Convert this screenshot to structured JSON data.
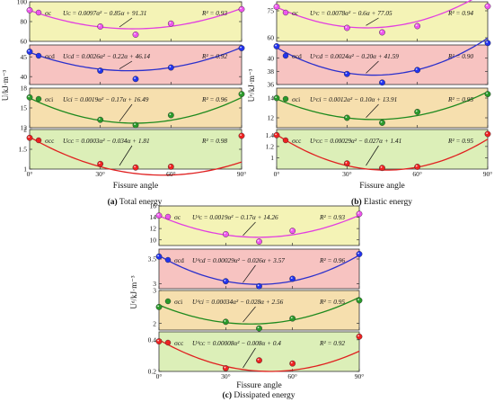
{
  "chart_data": [
    {
      "type": "scatter",
      "title": "",
      "caption_letter": "(a)",
      "caption_text": " Total energy",
      "xlabel": "Fissure angle",
      "ylabel": "U/kJ·m⁻³",
      "x_ticks": [
        "0°",
        "30°",
        "60°",
        "90°"
      ],
      "xlim": [
        0,
        90
      ],
      "panels": [
        {
          "series": "σc",
          "bg": "#f4f3b6",
          "line_color": "#e23ee0",
          "marker_color": "#ee55ee",
          "x": [
            0,
            30,
            45,
            60,
            90
          ],
          "y": [
            91.5,
            75,
            66.8,
            78,
            92.5
          ],
          "fit": {
            "a": 0.0097,
            "b": -0.85,
            "c": 91.31
          },
          "equation": "Uᴄ = 0.0097α² − 0.85α + 91.31",
          "r2": "R² = 0.93",
          "ylim": [
            60,
            100
          ],
          "yticks": [
            60,
            80,
            100
          ]
        },
        {
          "series": "σcd",
          "bg": "#f7c3c1",
          "line_color": "#2b30cc",
          "marker_color": "#2233ee",
          "x": [
            0,
            30,
            45,
            60,
            90
          ],
          "y": [
            46.3,
            41.5,
            39.4,
            42.3,
            47.2
          ],
          "fit": {
            "a": 0.0026,
            "b": -0.22,
            "c": 46.14
          },
          "equation": "Uᴄd = 0.0026α² − 0.22α + 46.14",
          "r2": "R² = 0.92",
          "ylim": [
            38,
            48
          ],
          "yticks": [
            40,
            45
          ]
        },
        {
          "series": "σci",
          "bg": "#f6dfae",
          "line_color": "#1e8a1e",
          "marker_color": "#2a9a2a",
          "x": [
            0,
            30,
            45,
            60,
            90
          ],
          "y": [
            16.6,
            13.2,
            12.4,
            13.9,
            17.1
          ],
          "fit": {
            "a": 0.0019,
            "b": -0.17,
            "c": 16.49
          },
          "equation": "Uᴄi = 0.0019α² − 0.17α + 16.49",
          "r2": "R² = 0.96",
          "ylim": [
            12,
            18
          ],
          "yticks": [
            12,
            15,
            18
          ]
        },
        {
          "series": "σcc",
          "bg": "#dcefb8",
          "line_color": "#e02020",
          "marker_color": "#ee2222",
          "x": [
            0,
            30,
            45,
            60,
            90
          ],
          "y": [
            1.79,
            1.13,
            1.04,
            1.06,
            1.84
          ],
          "fit": {
            "a": 0.0003,
            "b": -0.034,
            "c": 1.81
          },
          "equation": "Uᴄᴄ = 0.0003α² − 0.034α + 1.81",
          "r2": "R² = 0.98",
          "ylim": [
            1.0,
            2.0
          ],
          "yticks": [
            1.0,
            1.5,
            2.0
          ]
        }
      ]
    },
    {
      "type": "scatter",
      "title": "",
      "caption_letter": "(b)",
      "caption_text": " Elastic energy",
      "xlabel": "Fissure angle",
      "ylabel": "Uᵉ/kJ·m⁻³",
      "x_ticks": [
        "0°",
        "30°",
        "60°",
        "90°"
      ],
      "xlim": [
        0,
        90
      ],
      "panels": [
        {
          "series": "σc",
          "bg": "#f4f3b6",
          "line_color": "#e23ee0",
          "marker_color": "#ee55ee",
          "x": [
            0,
            30,
            45,
            60,
            90
          ],
          "y": [
            77.2,
            65.5,
            63,
            66.5,
            77.5
          ],
          "fit": {
            "a": 0.0078,
            "b": -0.6,
            "c": 77.05
          },
          "equation": "Uᵉᴄ = 0.0078α² − 0.6α + 77.05",
          "r2": "R² = 0.94",
          "ylim": [
            58,
            80
          ],
          "yticks": [
            60,
            75
          ]
        },
        {
          "series": "σcd",
          "bg": "#f7c3c1",
          "line_color": "#2b30cc",
          "marker_color": "#2233ee",
          "x": [
            0,
            30,
            45,
            60,
            90
          ],
          "y": [
            41.8,
            37.6,
            36.3,
            38.2,
            42.3
          ],
          "fit": {
            "a": 0.0024,
            "b": -0.2,
            "c": 41.59
          },
          "equation": "Uᵉᴄd = 0.0024α² − 0.20α + 41.59",
          "r2": "R² = 0.90",
          "ylim": [
            36,
            42
          ],
          "yticks": [
            36,
            38,
            40
          ]
        },
        {
          "series": "σci",
          "bg": "#f6dfae",
          "line_color": "#1e8a1e",
          "marker_color": "#2a9a2a",
          "x": [
            0,
            30,
            45,
            60,
            90
          ],
          "y": [
            14,
            12,
            11.5,
            12.6,
            14.4
          ],
          "fit": {
            "a": 0.0012,
            "b": -0.1,
            "c": 13.91
          },
          "equation": "Uᵉᴄi = 0.0012α² − 0.10α + 13.91",
          "r2": "R² = 0.95",
          "ylim": [
            11,
            15
          ],
          "yticks": [
            12,
            14
          ]
        },
        {
          "series": "σcc",
          "bg": "#dcefb8",
          "line_color": "#e02020",
          "marker_color": "#ee2222",
          "x": [
            0,
            30,
            45,
            60,
            90
          ],
          "y": [
            1.4,
            0.9,
            0.82,
            0.84,
            1.42
          ],
          "fit": {
            "a": 0.00029,
            "b": -0.027,
            "c": 1.41
          },
          "equation": "Uᵉᴄᴄ = 0.00029α² − 0.027α + 1.41",
          "r2": "R² = 0.95",
          "ylim": [
            0.8,
            1.5
          ],
          "yticks": [
            1.0,
            1.2,
            1.4
          ]
        }
      ]
    },
    {
      "type": "scatter",
      "title": "",
      "caption_letter": "(c)",
      "caption_text": " Dissipated energy",
      "xlabel": "Fissure angle",
      "ylabel": "Uᵈ/kJ·m⁻³",
      "x_ticks": [
        "0°",
        "30°",
        "60°",
        "90°"
      ],
      "xlim": [
        0,
        90
      ],
      "panels": [
        {
          "series": "σc",
          "bg": "#f4f3b6",
          "line_color": "#e23ee0",
          "marker_color": "#ee55ee",
          "x": [
            0,
            30,
            45,
            60,
            90
          ],
          "y": [
            14.3,
            11.0,
            9.7,
            11.6,
            14.6
          ],
          "fit": {
            "a": 0.0019,
            "b": -0.17,
            "c": 14.26
          },
          "equation": "Uᵈᴄ = 0.0019α² − 0.17α + 14.26",
          "r2": "R² = 0.93",
          "ylim": [
            9,
            16
          ],
          "yticks": [
            10,
            12,
            14,
            16
          ]
        },
        {
          "series": "σcd",
          "bg": "#f7c3c1",
          "line_color": "#2b30cc",
          "marker_color": "#2233ee",
          "x": [
            0,
            30,
            45,
            60,
            90
          ],
          "y": [
            3.55,
            3.05,
            2.95,
            3.1,
            3.6
          ],
          "fit": {
            "a": 0.00029,
            "b": -0.026,
            "c": 3.57
          },
          "equation": "Uᵈᴄd = 0.00029α² − 0.026α + 3.57",
          "r2": "R² = 0.96",
          "ylim": [
            2.9,
            3.7
          ],
          "yticks": [
            3.0,
            3.5
          ]
        },
        {
          "series": "σci",
          "bg": "#f6dfae",
          "line_color": "#1e8a1e",
          "marker_color": "#2a9a2a",
          "x": [
            0,
            30,
            45,
            60,
            90
          ],
          "y": [
            2.5,
            2.05,
            1.85,
            2.15,
            2.7
          ],
          "fit": {
            "a": 0.00034,
            "b": -0.028,
            "c": 2.56
          },
          "equation": "Uᵈᴄi = 0.00034α² − 0.028α + 2.56",
          "r2": "R² = 0.95",
          "ylim": [
            1.8,
            3.0
          ],
          "yticks": [
            2,
            3
          ]
        },
        {
          "series": "σcc",
          "bg": "#dcefb8",
          "line_color": "#e02020",
          "marker_color": "#ee2222",
          "x": [
            0,
            30,
            45,
            60,
            90
          ],
          "y": [
            0.39,
            0.22,
            0.27,
            0.25,
            0.42
          ],
          "fit": {
            "a": 8e-05,
            "b": -0.008,
            "c": 0.4
          },
          "equation": "Uᵈᴄᴄ = 0.00008α² − 0.008α + 0.4",
          "r2": "R² = 0.92",
          "ylim": [
            0.2,
            0.45
          ],
          "yticks": [
            0.2,
            0.4
          ]
        }
      ]
    }
  ]
}
